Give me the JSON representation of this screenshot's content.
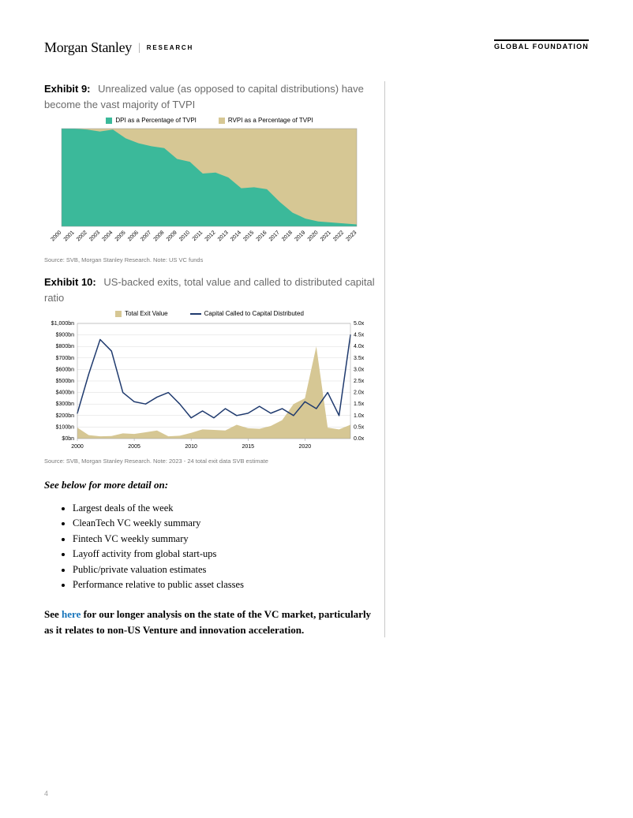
{
  "header": {
    "brand": "Morgan Stanley",
    "sub_brand": "RESEARCH",
    "right_brand": "GLOBAL FOUNDATION"
  },
  "exhibit9": {
    "num": "Exhibit 9:",
    "title": "Unrealized value (as opposed to capital distributions) have become the vast majority of TVPI",
    "type": "stacked_area",
    "categories": [
      "2000",
      "2001",
      "2002",
      "2003",
      "2004",
      "2005",
      "2006",
      "2007",
      "2008",
      "2009",
      "2010",
      "2011",
      "2012",
      "2013",
      "2014",
      "2015",
      "2016",
      "2017",
      "2018",
      "2019",
      "2020",
      "2021",
      "2022",
      "2023"
    ],
    "series": [
      {
        "name": "DPI as a Percentage of TVPI",
        "color": "#3bb99a",
        "values": [
          100,
          100,
          99,
          97,
          99,
          90,
          85,
          82,
          80,
          69,
          66,
          54,
          55,
          50,
          39,
          40,
          38,
          25,
          14,
          8,
          5,
          4,
          3,
          2
        ]
      },
      {
        "name": "RVPI as a Percentage of TVPI",
        "color": "#d6c794",
        "values": [
          0,
          0,
          1,
          3,
          1,
          10,
          15,
          18,
          20,
          31,
          34,
          46,
          45,
          50,
          61,
          60,
          62,
          75,
          86,
          92,
          95,
          96,
          97,
          98
        ]
      }
    ],
    "chart": {
      "ylim": [
        0,
        100
      ],
      "background": "#ffffff",
      "label_fontsize": 7,
      "xlabel_rotate": -45
    },
    "source": "Source: SVB, Morgan Stanley Research. Note: US VC funds"
  },
  "exhibit10": {
    "num": "Exhibit 10:",
    "title": "US-backed exits, total value and called to distributed capital ratio",
    "type": "combo_area_line",
    "categories": [
      "2000",
      "2001",
      "2002",
      "2003",
      "2004",
      "2005",
      "2006",
      "2007",
      "2008",
      "2009",
      "2010",
      "2011",
      "2012",
      "2013",
      "2014",
      "2015",
      "2016",
      "2017",
      "2018",
      "2019",
      "2020",
      "2021",
      "2022",
      "2023",
      "2024"
    ],
    "series_area": {
      "name": "Total Exit Value",
      "axis": "left",
      "color": "#d6c794",
      "values": [
        95,
        30,
        20,
        22,
        45,
        40,
        55,
        70,
        20,
        25,
        50,
        80,
        75,
        70,
        120,
        90,
        85,
        110,
        160,
        300,
        350,
        800,
        95,
        80,
        120
      ]
    },
    "series_line": {
      "name": "Capital Called to Capital Distributed",
      "axis": "right",
      "color": "#1f3a6e",
      "values": [
        1.1,
        2.8,
        4.3,
        3.8,
        2.0,
        1.6,
        1.5,
        1.8,
        2.0,
        1.5,
        0.9,
        1.2,
        0.9,
        1.3,
        1.0,
        1.1,
        1.4,
        1.1,
        1.3,
        1.0,
        1.6,
        1.3,
        2.0,
        1.0,
        4.5
      ]
    },
    "axes": {
      "y_left": {
        "label_prefix": "$",
        "label_suffix": "bn",
        "min": 0,
        "max": 1000,
        "step": 100
      },
      "y_right": {
        "label_suffix": "x",
        "min": 0,
        "max": 5,
        "step": 0.5
      },
      "x_ticks": [
        "2000",
        "2005",
        "2010",
        "2015",
        "2020"
      ]
    },
    "chart": {
      "background": "#ffffff",
      "grid_color": "#d9d9d9",
      "label_fontsize": 7,
      "line_width": 1.5
    },
    "source": "Source: SVB, Morgan Stanley Research. Note: 2023 - 24 total exit data SVB estimate"
  },
  "details": {
    "heading": "See below for more detail on:",
    "items": [
      "Largest deals of the week",
      "CleanTech VC weekly summary",
      "Fintech VC weekly summary",
      "Layoff activity from global start-ups",
      "Public/private valuation estimates",
      "Performance relative to public asset classes"
    ]
  },
  "closing": {
    "prefix": "See ",
    "link_text": "here",
    "suffix": " for our longer analysis on the state of the VC market, particularly as it relates to non-US Venture and innovation acceleration."
  },
  "page_number": "4"
}
